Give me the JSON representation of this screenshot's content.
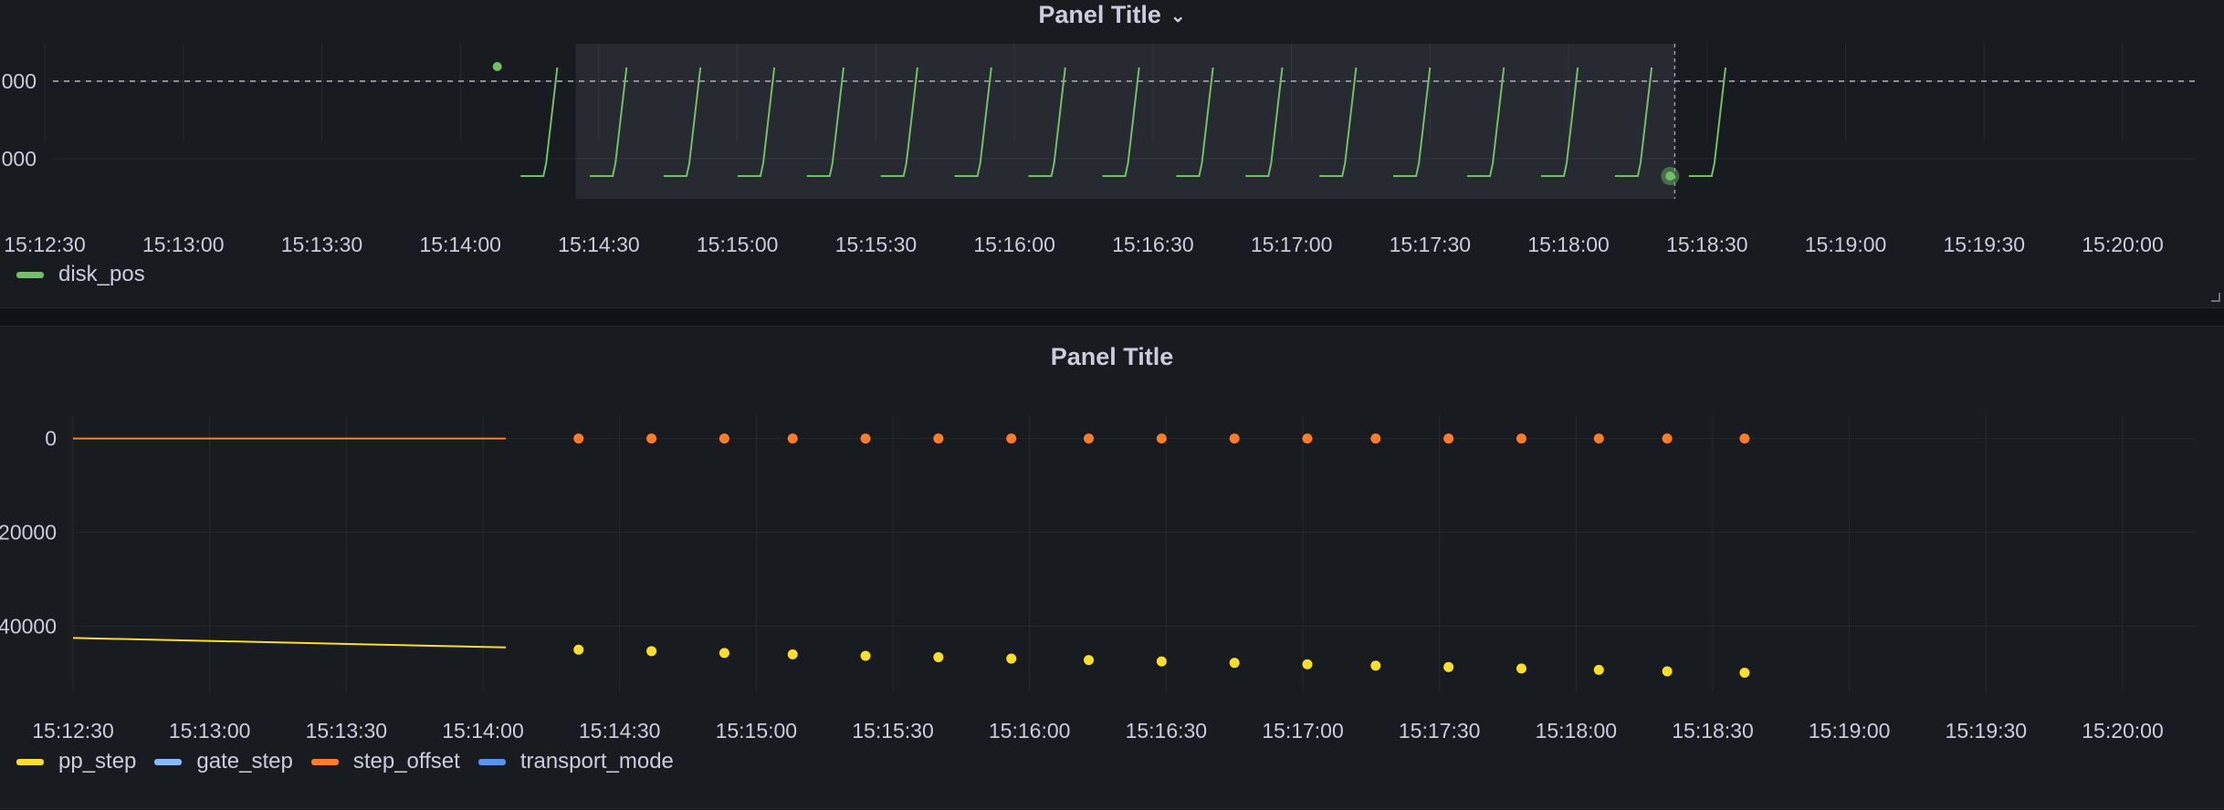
{
  "panels": [
    {
      "title": "Panel Title",
      "has_menu_chevron": true,
      "chevron_icon": "chevron-down-icon",
      "chart_data": {
        "type": "line",
        "x_tick_labels": [
          "15:12:30",
          "15:13:00",
          "15:13:30",
          "15:14:00",
          "15:14:30",
          "15:15:00",
          "15:15:30",
          "15:16:00",
          "15:16:30",
          "15:17:00",
          "15:17:30",
          "15:18:00",
          "15:18:30",
          "15:19:00",
          "15:19:30",
          "15:20:00"
        ],
        "y_tick_labels": [
          "000",
          "000"
        ],
        "series": [
          {
            "name": "disk_pos",
            "color": "#73bf69",
            "pattern": "sawtooth",
            "cycles_start_times": [
              "15:14:17",
              "15:14:32",
              "15:14:48",
              "15:15:04",
              "15:15:19",
              "15:15:35",
              "15:15:51",
              "15:16:07",
              "15:16:23",
              "15:16:39",
              "15:16:54",
              "15:17:10",
              "15:17:26",
              "15:17:42",
              "15:17:58",
              "15:18:14",
              "15:18:30"
            ],
            "cycle_rise_seconds": 3,
            "baseline": "low",
            "peak": "high"
          }
        ],
        "isolated_point_time": "15:14:08",
        "threshold_dashed_line": "high",
        "selection_region": {
          "from": "15:14:25",
          "to": "15:18:23"
        },
        "crosshair_time": "15:18:23",
        "hover_point_time": "15:18:22"
      }
    },
    {
      "title": "Panel Title",
      "chart_data": {
        "type": "line",
        "x_tick_labels": [
          "15:12:30",
          "15:13:00",
          "15:13:30",
          "15:14:00",
          "15:14:30",
          "15:15:00",
          "15:15:30",
          "15:16:00",
          "15:16:30",
          "15:17:00",
          "15:17:30",
          "15:18:00",
          "15:18:30",
          "15:19:00",
          "15:19:30",
          "15:20:00"
        ],
        "y_tick_labels": [
          "0",
          "20000",
          "40000"
        ],
        "ylim": [
          -50000,
          5000
        ],
        "series": [
          {
            "name": "pp_step",
            "color": "#fade2a",
            "line": {
              "start": [
                "15:12:30",
                -42500
              ],
              "end": [
                "15:14:05",
                -44500
              ]
            },
            "points": [
              [
                "15:14:21",
                -45000
              ],
              [
                "15:14:37",
                -45300
              ],
              [
                "15:14:53",
                -45700
              ],
              [
                "15:15:08",
                -46000
              ],
              [
                "15:15:24",
                -46300
              ],
              [
                "15:15:40",
                -46600
              ],
              [
                "15:15:56",
                -46900
              ],
              [
                "15:16:13",
                -47200
              ],
              [
                "15:16:29",
                -47500
              ],
              [
                "15:16:45",
                -47800
              ],
              [
                "15:17:01",
                -48100
              ],
              [
                "15:17:16",
                -48400
              ],
              [
                "15:17:32",
                -48700
              ],
              [
                "15:17:48",
                -49000
              ],
              [
                "15:18:05",
                -49300
              ],
              [
                "15:18:20",
                -49600
              ],
              [
                "15:18:37",
                -49900
              ]
            ]
          },
          {
            "name": "gate_step",
            "color": "#8ab8ff"
          },
          {
            "name": "step_offset",
            "color": "#ff7c2a",
            "line": {
              "start": [
                "15:12:30",
                0
              ],
              "end": [
                "15:14:05",
                0
              ]
            },
            "points": [
              [
                "15:14:21",
                0
              ],
              [
                "15:14:37",
                0
              ],
              [
                "15:14:53",
                0
              ],
              [
                "15:15:08",
                0
              ],
              [
                "15:15:24",
                0
              ],
              [
                "15:15:40",
                0
              ],
              [
                "15:15:56",
                0
              ],
              [
                "15:16:13",
                0
              ],
              [
                "15:16:29",
                0
              ],
              [
                "15:16:45",
                0
              ],
              [
                "15:17:01",
                0
              ],
              [
                "15:17:16",
                0
              ],
              [
                "15:17:32",
                0
              ],
              [
                "15:17:48",
                0
              ],
              [
                "15:18:05",
                0
              ],
              [
                "15:18:20",
                0
              ],
              [
                "15:18:37",
                0
              ]
            ]
          },
          {
            "name": "transport_mode",
            "color": "#5794f2"
          }
        ]
      }
    }
  ]
}
